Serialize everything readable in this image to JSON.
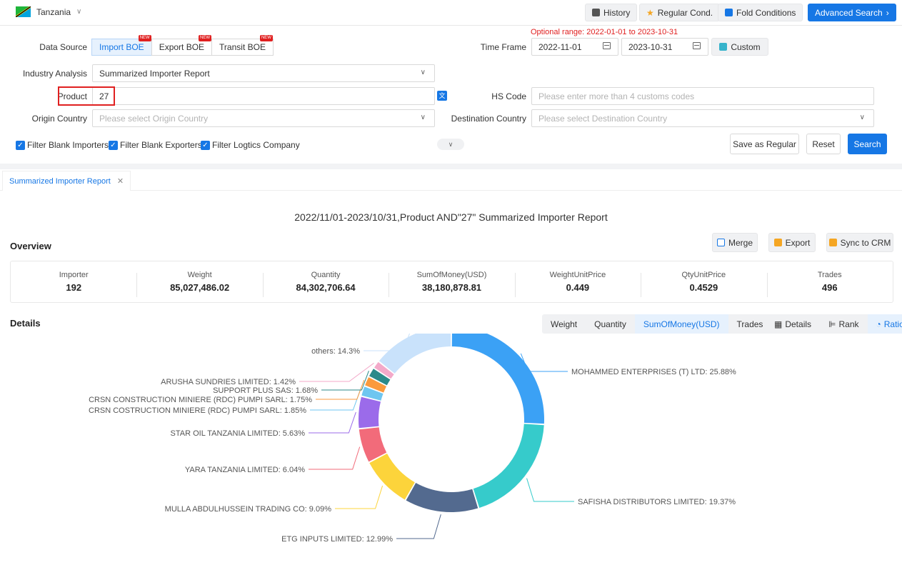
{
  "top": {
    "country": "Tanzania",
    "buttons": {
      "history": "History",
      "regular": "Regular Cond.",
      "fold": "Fold Conditions",
      "advanced": "Advanced Search"
    }
  },
  "form": {
    "optional_range": "Optional range:  2022-01-01 to 2023-10-31",
    "data_source_label": "Data Source",
    "data_sources": [
      "Import BOE",
      "Export BOE",
      "Transit BOE"
    ],
    "new_tag": "NEW",
    "time_frame_label": "Time Frame",
    "date_from": "2022-11-01",
    "date_to": "2023-10-31",
    "custom_label": "Custom",
    "industry_label": "Industry Analysis",
    "industry_value": "Summarized Importer Report",
    "product_label": "Product",
    "product_value": "27",
    "hs_label": "HS Code",
    "hs_placeholder": "Please enter more than 4 customs codes",
    "origin_label": "Origin Country",
    "origin_placeholder": "Please select Origin Country",
    "dest_label": "Destination Country",
    "dest_placeholder": "Please select Destination Country",
    "filters": [
      "Filter Blank Importers",
      "Filter Blank Exporters",
      "Filter Logtics Company"
    ],
    "save_regular": "Save as Regular",
    "reset": "Reset",
    "search": "Search"
  },
  "tab": {
    "label": "Summarized Importer Report"
  },
  "report": {
    "title": "2022/11/01-2023/10/31,Product AND\"27\" Summarized Importer Report",
    "overview_label": "Overview",
    "actions": {
      "merge": "Merge",
      "export": "Export",
      "sync": "Sync to CRM"
    },
    "stats": [
      {
        "k": "Importer",
        "v": "192"
      },
      {
        "k": "Weight",
        "v": "85,027,486.02"
      },
      {
        "k": "Quantity",
        "v": "84,302,706.64"
      },
      {
        "k": "SumOfMoney(USD)",
        "v": "38,180,878.81"
      },
      {
        "k": "WeightUnitPrice",
        "v": "0.449"
      },
      {
        "k": "QtyUnitPrice",
        "v": "0.4529"
      },
      {
        "k": "Trades",
        "v": "496"
      }
    ],
    "details_label": "Details",
    "metric_tabs": [
      "Weight",
      "Quantity",
      "SumOfMoney(USD)",
      "Trades"
    ],
    "active_metric": "SumOfMoney(USD)",
    "view_tabs": [
      "Details",
      "Rank",
      "Ratio"
    ],
    "active_view": "Ratio"
  },
  "chart_data": {
    "type": "pie",
    "slices": [
      {
        "label": "MOHAMMED ENTERPRISES (T) LTD",
        "value": 25.88,
        "color": "#3ba1f5"
      },
      {
        "label": "SAFISHA DISTRIBUTORS LIMITED",
        "value": 19.37,
        "color": "#36cbcb"
      },
      {
        "label": "ETG INPUTS LIMITED",
        "value": 12.99,
        "color": "#536a8f"
      },
      {
        "label": "MULLA ABDULHUSSEIN TRADING CO",
        "value": 9.09,
        "color": "#fcd43b"
      },
      {
        "label": "YARA TANZANIA LIMITED",
        "value": 6.04,
        "color": "#f26b7a"
      },
      {
        "label": "STAR OIL TANZANIA LIMITED",
        "value": 5.63,
        "color": "#9b6bea"
      },
      {
        "label": "CRSN COSTRUCTION MINIERE (RDC) PUMPI SARL",
        "value": 1.85,
        "color": "#6ec6f0"
      },
      {
        "label": "CRSN CONSTRUCTION MINIERE (RDC) PUMPI SARL",
        "value": 1.75,
        "color": "#fb9a3c"
      },
      {
        "label": "SUPPORT PLUS SAS",
        "value": 1.68,
        "color": "#2b8a8a"
      },
      {
        "label": "ARUSHA SUNDRIES LIMITED",
        "value": 1.42,
        "color": "#f3a9c9"
      },
      {
        "label": "others",
        "value": 14.3,
        "color": "#c9e2fb"
      }
    ]
  },
  "colors": {
    "accent": "#1677e5",
    "required_box": "#e02020"
  }
}
